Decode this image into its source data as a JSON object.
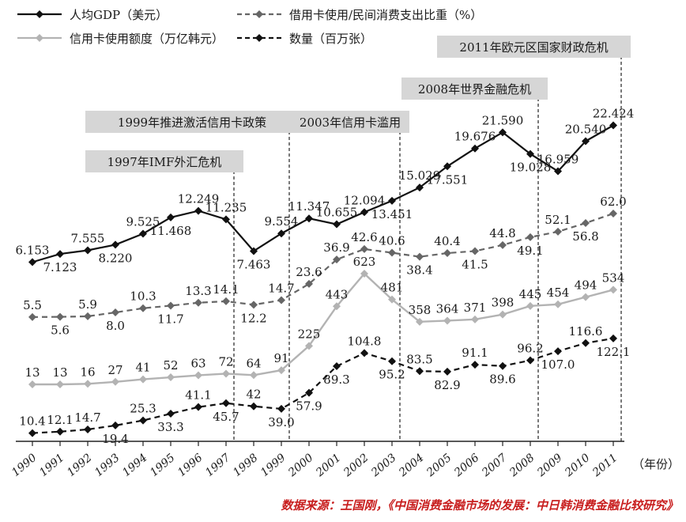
{
  "chart_data": {
    "type": "line",
    "title": "",
    "xlabel": "",
    "ylabel": "",
    "x_unit_label": "（年份）",
    "categories": [
      "1990",
      "1991",
      "1992",
      "1993",
      "1994",
      "1995",
      "1996",
      "1997",
      "1998",
      "1999",
      "2000",
      "2001",
      "2002",
      "2003",
      "2004",
      "2005",
      "2006",
      "2007",
      "2008",
      "2009",
      "2010",
      "2011"
    ],
    "legend_placement": "top-left",
    "grid": false,
    "series": [
      {
        "name": "人均GDP（美元）",
        "style": "solid",
        "color": "#111111",
        "values": [
          6.153,
          7.123,
          7.555,
          8.22,
          9.525,
          11.468,
          12.249,
          11.235,
          7.463,
          9.554,
          11.347,
          10.655,
          12.094,
          13.451,
          15.029,
          17.551,
          19.676,
          21.59,
          19.028,
          16.959,
          20.54,
          22.424
        ],
        "labels": [
          "6.153",
          "7.123",
          "7.555",
          "8.220",
          "9.525",
          "11.468",
          "12.249",
          "11.235",
          "7.463",
          "9.554",
          "11.347",
          "10.655",
          "12.094",
          "13.451",
          "15.029",
          "17.551",
          "19.676",
          "21.590",
          "19.028",
          "16.959",
          "20.540",
          "22.424"
        ]
      },
      {
        "name": "借用卡使用/民间消费支出比重（%）",
        "style": "dashed",
        "color": "#666666",
        "values": [
          5.5,
          5.6,
          5.9,
          8.0,
          10.3,
          11.7,
          13.3,
          14.1,
          12.2,
          14.7,
          23.6,
          36.9,
          42.6,
          40.6,
          38.4,
          40.4,
          41.5,
          44.8,
          49.1,
          52.1,
          56.8,
          62.0
        ],
        "labels": [
          "5.5",
          "5.6",
          "5.9",
          "8.0",
          "10.3",
          "11.7",
          "13.3",
          "14.1",
          "12.2",
          "14.7",
          "23.6",
          "36.9",
          "42.6",
          "40.6",
          "38.4",
          "40.4",
          "41.5",
          "44.8",
          "49.1",
          "52.1",
          "56.8",
          "62.0"
        ]
      },
      {
        "name": "信用卡使用额度（万亿韩元）",
        "style": "solid",
        "color": "#b3b3b3",
        "values": [
          13,
          13,
          16,
          27,
          41,
          52,
          63,
          72,
          64,
          91,
          225,
          443,
          623,
          481,
          358,
          364,
          371,
          398,
          445,
          454,
          494,
          534
        ],
        "labels": [
          "13",
          "13",
          "16",
          "27",
          "41",
          "52",
          "63",
          "72",
          "64",
          "91",
          "225",
          "443",
          "623",
          "481",
          "358",
          "364",
          "371",
          "398",
          "445",
          "454",
          "494",
          "534"
        ]
      },
      {
        "name": "数量（百万张）",
        "style": "dashed",
        "color": "#111111",
        "values": [
          10.4,
          12.1,
          14.7,
          19.4,
          25.3,
          33.3,
          41.1,
          45.7,
          42,
          39.0,
          57.9,
          89.3,
          104.8,
          95.2,
          83.5,
          82.9,
          91.1,
          89.6,
          96.2,
          107.0,
          116.6,
          122.1
        ],
        "labels": [
          "10.4",
          "12.1",
          "14.7",
          "19.4",
          "25.3",
          "33.3",
          "41.1",
          "45.7",
          "42",
          "39.0",
          "57.9",
          "89.3",
          "104.8",
          "95.2",
          "83.5",
          "82.9",
          "91.1",
          "89.6",
          "96.2",
          "107.0",
          "116.6",
          "122.1"
        ]
      }
    ],
    "annotations": [
      {
        "year": "1997",
        "text": "1997年IMF外汇危机"
      },
      {
        "year": "1999",
        "text": "1999年推进激活信用卡政策"
      },
      {
        "year": "2003",
        "text": "2003年信用卡滥用"
      },
      {
        "year": "2008",
        "text": "2008年世界金融危机"
      },
      {
        "year": "2011",
        "text": "2011年欧元区国家财政危机"
      }
    ]
  },
  "source_note": "数据来源：王国刚，《中国消费金融市场的发展：中日韩消费金融比较研究》"
}
